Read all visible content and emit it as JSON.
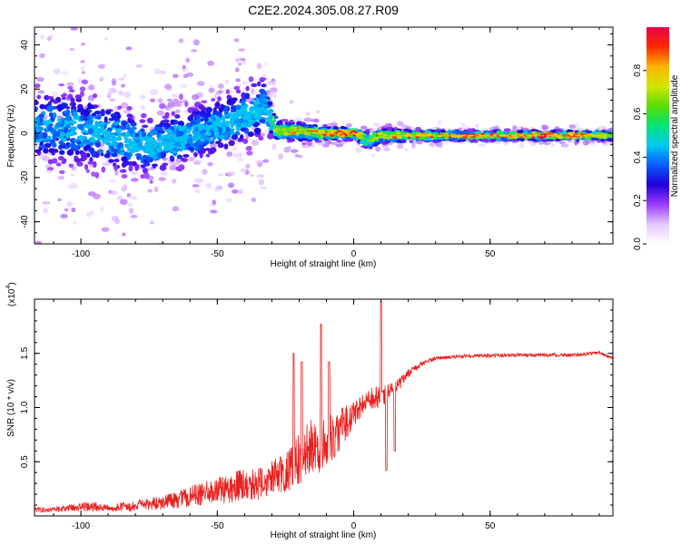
{
  "figure_title": "C2E2.2024.305.08.27.R09",
  "colors": {
    "snr_line": "#e8201f",
    "axis": "#000000",
    "background": "#ffffff"
  },
  "chart_data": [
    {
      "type": "heatmap",
      "title": "C2E2.2024.305.08.27.R09",
      "xlabel": "Height of straight line (km)",
      "ylabel": "Frequency (Hz)",
      "xlim": [
        -117,
        95
      ],
      "ylim": [
        -50,
        48
      ],
      "x_ticks": [
        -100,
        -50,
        0,
        50
      ],
      "y_ticks": [
        -40,
        -20,
        0,
        20,
        40
      ],
      "colorbar": {
        "label": "Normalized spectral amplitude",
        "range": [
          0,
          1
        ],
        "ticks": [
          0.0,
          0.2,
          0.4,
          0.6,
          0.8
        ],
        "tick_labels": [
          "0.0",
          "0.2",
          "0.4",
          "0.6",
          "0.8"
        ],
        "colormap": [
          "#ffffff",
          "#e6c8ff",
          "#9a3cff",
          "#1e00d8",
          "#0a5cff",
          "#00c8f0",
          "#00e678",
          "#5adc00",
          "#d2e600",
          "#ffb400",
          "#ff2a00",
          "#e6004b"
        ]
      },
      "ridge": {
        "description": "dominant spectral ridge (center frequency in Hz vs height in km)",
        "x": [
          -117,
          -100,
          -85,
          -75,
          -60,
          -50,
          -40,
          -33,
          -28,
          -20,
          -10,
          0,
          5,
          10,
          20,
          40,
          60,
          80,
          95
        ],
        "center_hz": [
          3,
          2,
          -3,
          -6,
          -1,
          3,
          8,
          12,
          1,
          1,
          0,
          0,
          -3,
          -1,
          -1,
          -1,
          -1,
          -1,
          -1
        ],
        "spread_hz": [
          8,
          8,
          7,
          6,
          6,
          6,
          6,
          6,
          2,
          2,
          1.5,
          1.2,
          2,
          1.5,
          1.2,
          1,
          1,
          1,
          1
        ],
        "peak_amplitude": [
          0.35,
          0.35,
          0.4,
          0.4,
          0.4,
          0.4,
          0.45,
          0.45,
          0.65,
          0.7,
          0.85,
          0.95,
          0.6,
          0.75,
          0.8,
          0.85,
          0.9,
          0.9,
          0.7
        ]
      }
    },
    {
      "type": "line",
      "xlabel": "Height of straight line (km)",
      "ylabel": "SNR (10 * v/v)",
      "y_scale_label": "(x10",
      "y_scale_exponent": "4",
      "xlim": [
        -117,
        95
      ],
      "ylim": [
        0,
        2.0
      ],
      "x_ticks": [
        -100,
        -50,
        0,
        50
      ],
      "y_ticks": [
        0.5,
        1.0,
        1.5
      ],
      "y_tick_labels": [
        "0.5",
        "1.0",
        "1.5"
      ],
      "series": [
        {
          "name": "SNR",
          "x": [
            -117,
            -110,
            -100,
            -95,
            -90,
            -80,
            -70,
            -60,
            -50,
            -45,
            -40,
            -35,
            -30,
            -25,
            -20,
            -15,
            -10,
            -5,
            0,
            5,
            10,
            15,
            20,
            25,
            30,
            40,
            60,
            80,
            90,
            95
          ],
          "mean": [
            0.05,
            0.05,
            0.07,
            0.07,
            0.06,
            0.08,
            0.1,
            0.15,
            0.2,
            0.22,
            0.25,
            0.25,
            0.3,
            0.35,
            0.45,
            0.55,
            0.6,
            0.75,
            0.9,
            1.05,
            1.05,
            1.15,
            1.3,
            1.4,
            1.45,
            1.47,
            1.48,
            1.48,
            1.5,
            1.45
          ],
          "noise": [
            0.03,
            0.03,
            0.05,
            0.06,
            0.04,
            0.06,
            0.08,
            0.12,
            0.15,
            0.18,
            0.18,
            0.18,
            0.2,
            0.25,
            0.3,
            0.35,
            0.3,
            0.25,
            0.15,
            0.12,
            0.15,
            0.08,
            0.05,
            0.03,
            0.02,
            0.02,
            0.02,
            0.02,
            0.02,
            0.02
          ],
          "spikes": [
            [
              -22,
              1.5
            ],
            [
              -19,
              1.42
            ],
            [
              -12,
              1.77
            ],
            [
              -9,
              1.42
            ],
            [
              10,
              1.98
            ],
            [
              12,
              1.38
            ]
          ],
          "dips": [
            [
              12,
              0.42
            ],
            [
              15,
              0.6
            ]
          ]
        }
      ]
    }
  ]
}
